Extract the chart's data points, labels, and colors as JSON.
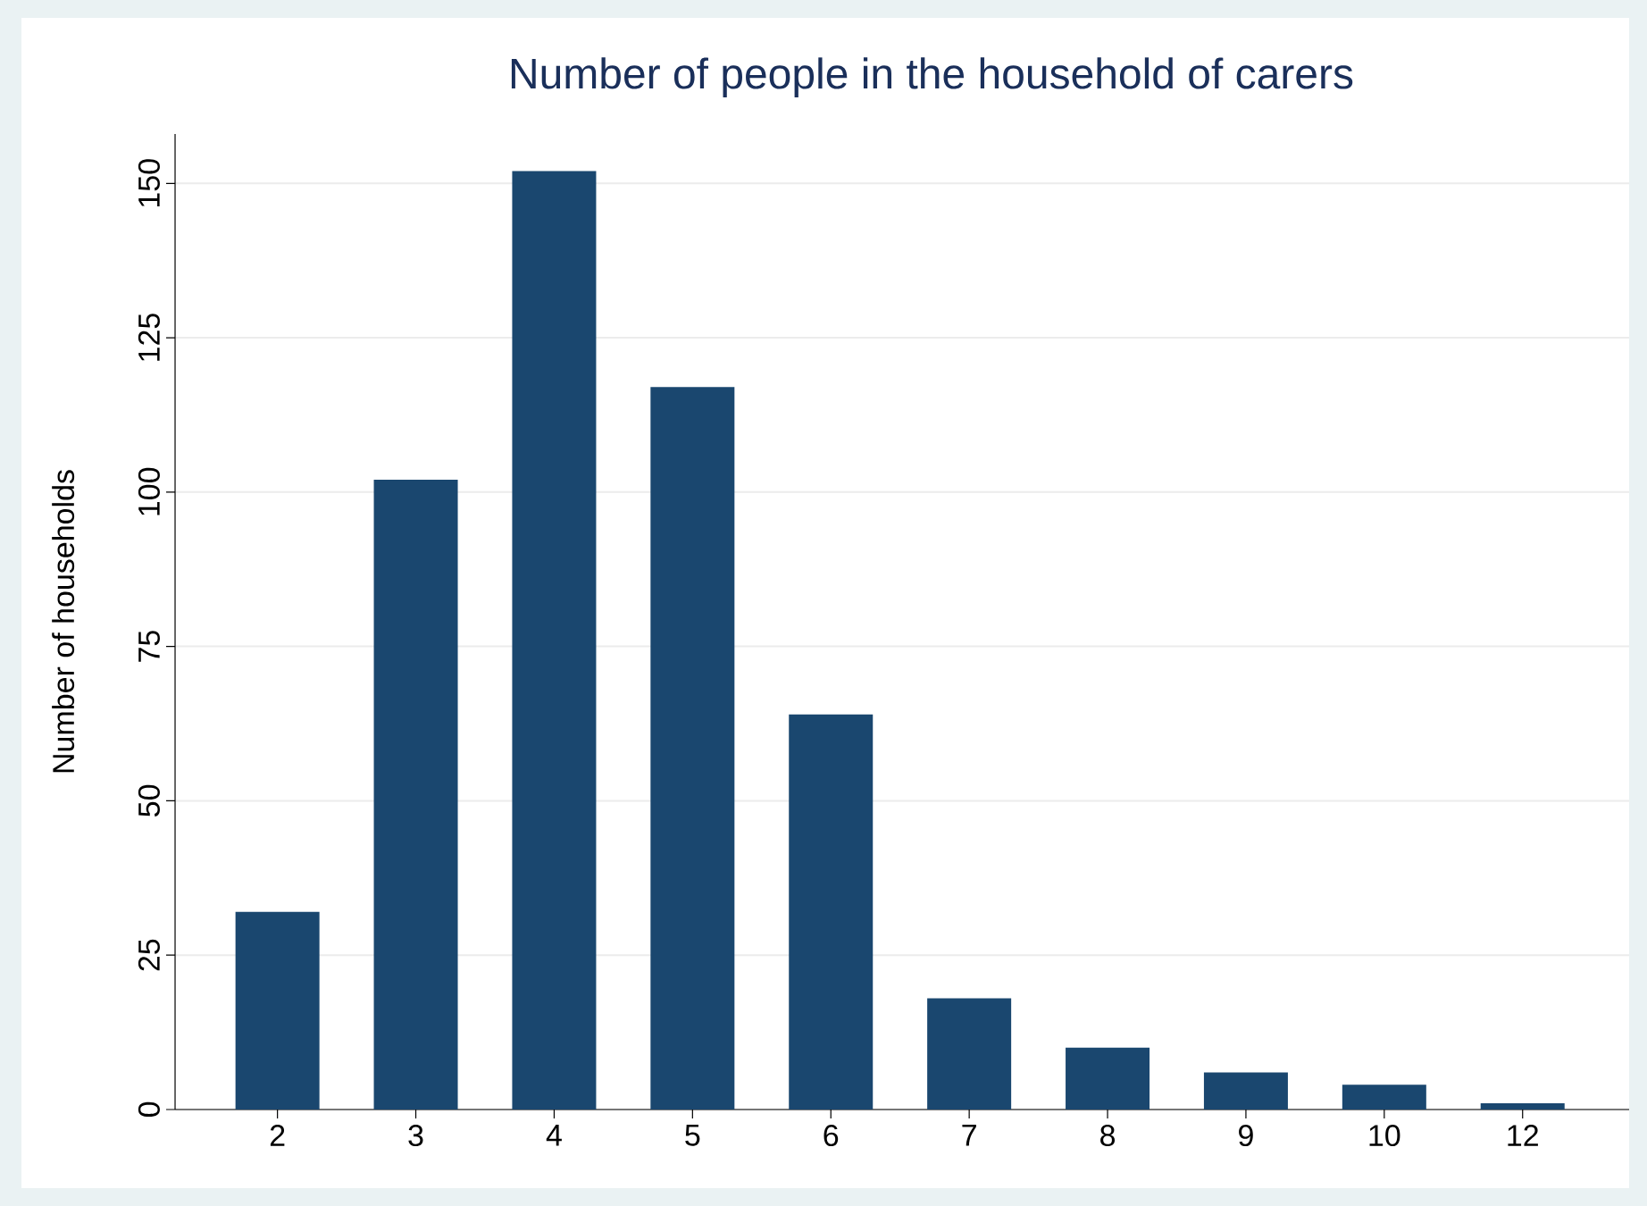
{
  "chart_data": {
    "type": "bar",
    "title": "Number of people in the household of carers",
    "ylabel": "Number of households",
    "categories": [
      "2",
      "3",
      "4",
      "5",
      "6",
      "7",
      "8",
      "9",
      "10",
      "12"
    ],
    "values": [
      32,
      102,
      152,
      117,
      64,
      18,
      10,
      6,
      4,
      1
    ],
    "color": "#1a476f",
    "ylim": [
      0,
      158
    ],
    "yticks": [
      0,
      25,
      50,
      75,
      100,
      125,
      150
    ],
    "grid": "y"
  }
}
